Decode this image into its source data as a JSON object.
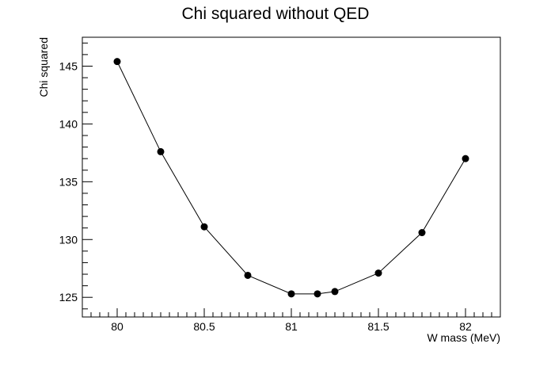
{
  "chart_data": {
    "type": "line",
    "title": "Chi squared without QED",
    "xlabel": "W mass (MeV)",
    "ylabel": "Chi squared",
    "xlim": [
      79.8,
      82.2
    ],
    "ylim": [
      123.3,
      147.5
    ],
    "x_ticks": [
      "80",
      "80.5",
      "81",
      "81.5",
      "82"
    ],
    "y_ticks": [
      "125",
      "130",
      "135",
      "140",
      "145"
    ],
    "series": [
      {
        "x": [
          80.0,
          80.25,
          80.5,
          80.75,
          81.0,
          81.15,
          81.25,
          81.5,
          81.75,
          82.0
        ],
        "y": [
          145.4,
          137.6,
          131.1,
          126.9,
          125.3,
          125.3,
          125.5,
          127.1,
          130.6,
          137.0
        ]
      }
    ],
    "marker": "filled-circle",
    "colors": {
      "line": "#000000",
      "marker": "#000000",
      "frame": "#000000"
    },
    "grid": false,
    "legend": "none"
  }
}
